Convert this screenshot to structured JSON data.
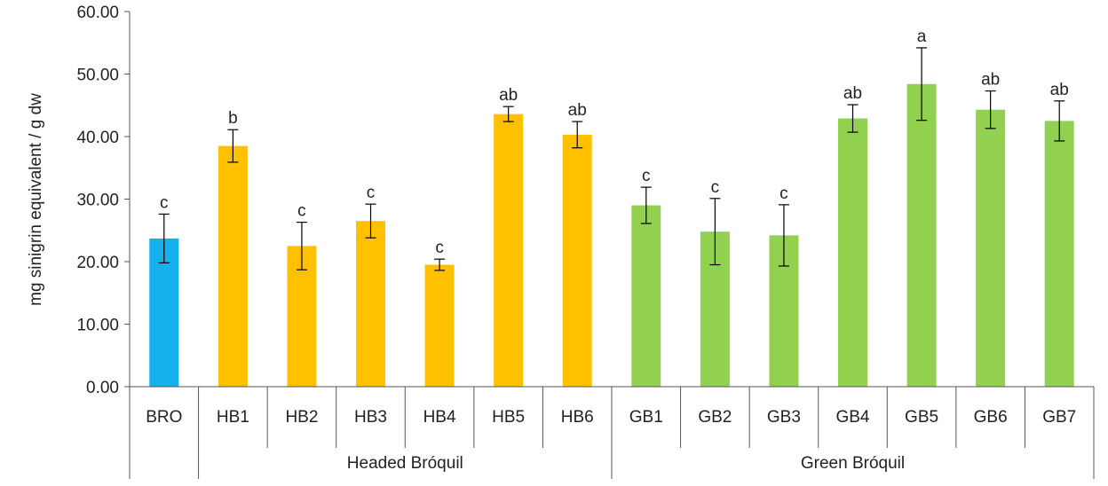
{
  "colors": {
    "reference": "#16b0ec",
    "headed": "#ffc000",
    "green": "#92d050",
    "axis": "#555555",
    "error": "#000000"
  },
  "chart_data": {
    "type": "bar",
    "ylabel": "mg sinigrin equivalent / g dw",
    "ylim": [
      0,
      60
    ],
    "yticks": [
      "0.00",
      "10.00",
      "20.00",
      "30.00",
      "40.00",
      "50.00",
      "60.00"
    ],
    "grid": false,
    "categories": [
      "BRO",
      "HB1",
      "HB2",
      "HB3",
      "HB4",
      "HB5",
      "HB6",
      "GB1",
      "GB2",
      "GB3",
      "GB4",
      "GB5",
      "GB6",
      "GB7"
    ],
    "values": [
      23.7,
      38.5,
      22.5,
      26.5,
      19.5,
      43.6,
      40.3,
      29.0,
      24.8,
      24.2,
      42.9,
      48.4,
      44.3,
      42.5
    ],
    "errors": [
      3.9,
      2.6,
      3.8,
      2.7,
      0.9,
      1.2,
      2.1,
      2.9,
      5.3,
      4.9,
      2.2,
      5.8,
      3.0,
      3.2
    ],
    "significance": [
      "c",
      "b",
      "c",
      "c",
      "c",
      "ab",
      "ab",
      "c",
      "c",
      "c",
      "ab",
      "a",
      "ab",
      "ab"
    ],
    "colors": [
      "reference",
      "headed",
      "headed",
      "headed",
      "headed",
      "headed",
      "headed",
      "green",
      "green",
      "green",
      "green",
      "green",
      "green",
      "green"
    ],
    "groups": [
      {
        "label": "Headed Bróquil",
        "start": 1,
        "end": 6
      },
      {
        "label": "Green Bróquil",
        "start": 7,
        "end": 13
      }
    ]
  }
}
